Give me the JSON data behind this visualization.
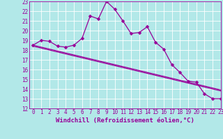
{
  "xlabel": "Windchill (Refroidissement éolien,°C)",
  "background_color": "#b2e8e8",
  "grid_color": "#ffffff",
  "line_color": "#990099",
  "xlim": [
    -0.5,
    23
  ],
  "ylim": [
    12,
    23
  ],
  "xticks": [
    0,
    1,
    2,
    3,
    4,
    5,
    6,
    7,
    8,
    9,
    10,
    11,
    12,
    13,
    14,
    15,
    16,
    17,
    18,
    19,
    20,
    21,
    22,
    23
  ],
  "yticks": [
    12,
    13,
    14,
    15,
    16,
    17,
    18,
    19,
    20,
    21,
    22,
    23
  ],
  "x": [
    0,
    1,
    2,
    3,
    4,
    5,
    6,
    7,
    8,
    9,
    10,
    11,
    12,
    13,
    14,
    15,
    16,
    17,
    18,
    19,
    20,
    21,
    22,
    23
  ],
  "y_main": [
    18.5,
    19.0,
    18.9,
    18.4,
    18.3,
    18.5,
    19.2,
    21.5,
    21.2,
    23.0,
    22.2,
    21.0,
    19.7,
    19.8,
    20.4,
    18.8,
    18.1,
    16.5,
    15.7,
    14.8,
    14.7,
    13.5,
    13.0,
    13.0
  ],
  "y_trend1": [
    18.4,
    18.2,
    18.0,
    17.8,
    17.6,
    17.4,
    17.2,
    17.0,
    16.8,
    16.6,
    16.4,
    16.2,
    16.0,
    15.8,
    15.6,
    15.4,
    15.2,
    15.0,
    14.8,
    14.6,
    14.4,
    14.2,
    14.0,
    13.8
  ],
  "y_trend2": [
    18.5,
    18.3,
    18.1,
    17.9,
    17.7,
    17.5,
    17.3,
    17.1,
    16.9,
    16.7,
    16.5,
    16.3,
    16.1,
    15.9,
    15.7,
    15.5,
    15.3,
    15.1,
    14.9,
    14.7,
    14.5,
    14.3,
    14.1,
    13.9
  ],
  "markersize": 2.5,
  "linewidth": 0.9,
  "font_color": "#990099",
  "tick_fontsize": 5.5,
  "xlabel_fontsize": 6.5
}
